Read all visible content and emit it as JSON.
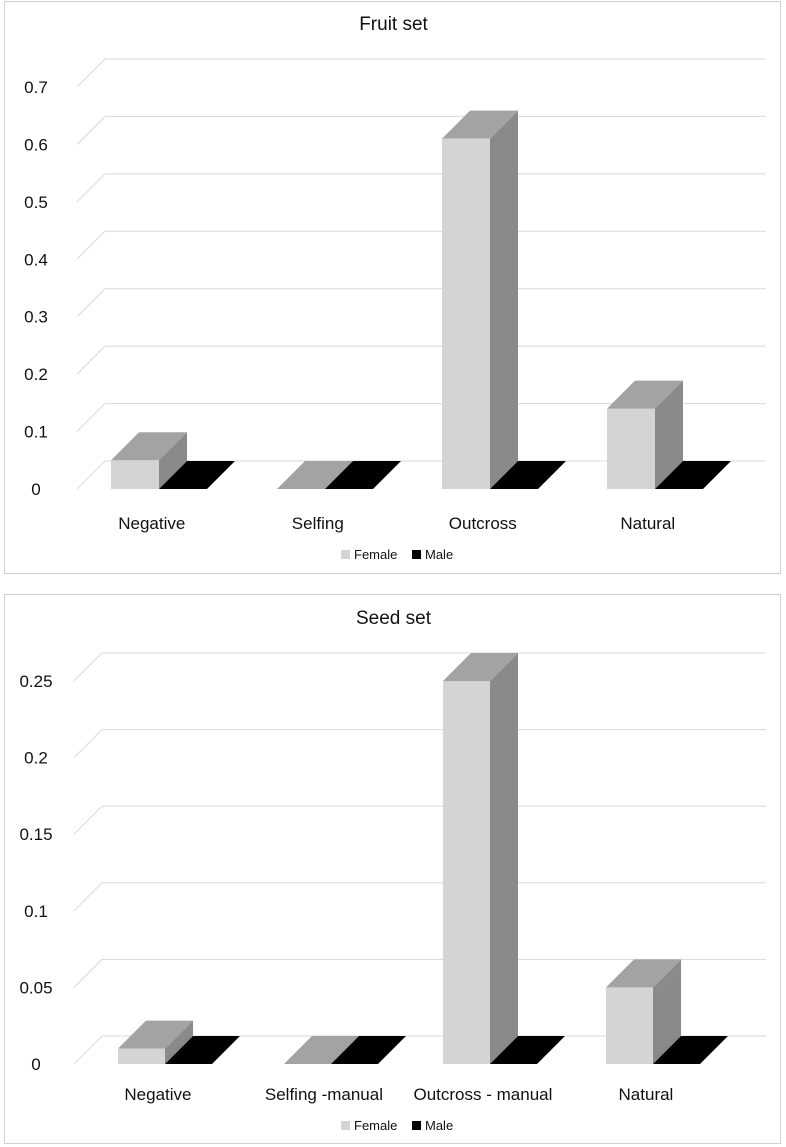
{
  "colors": {
    "female_front": "#d4d4d4",
    "female_side": "#8a8a8a",
    "female_top": "#a3a3a3",
    "male": "#000000",
    "grid": "#d9d9d9"
  },
  "chart_data": [
    {
      "type": "bar",
      "title": "Fruit set",
      "categories": [
        "Negative",
        "Selfing",
        "Outcross",
        "Natural"
      ],
      "series": [
        {
          "name": "Female",
          "values": [
            0.05,
            0.0,
            0.61,
            0.14
          ]
        },
        {
          "name": "Male",
          "values": [
            0.0,
            0.0,
            0.0,
            0.0
          ]
        }
      ],
      "yticks": [
        "0",
        "0.1",
        "0.2",
        "0.3",
        "0.4",
        "0.5",
        "0.6",
        "0.7"
      ],
      "ylim": [
        0,
        0.7
      ],
      "xlabel": "",
      "ylabel": "",
      "legend_position": "bottom",
      "grid": true
    },
    {
      "type": "bar",
      "title": "Seed set",
      "categories": [
        "Negative",
        "Selfing -manual",
        "Outcross - manual",
        "Natural"
      ],
      "series": [
        {
          "name": "Female",
          "values": [
            0.01,
            0.0,
            0.25,
            0.05
          ]
        },
        {
          "name": "Male",
          "values": [
            0.0,
            0.0,
            0.0,
            0.0
          ]
        }
      ],
      "yticks": [
        "0",
        "0.05",
        "0.1",
        "0.15",
        "0.2",
        "0.25"
      ],
      "ylim": [
        0,
        0.25
      ],
      "xlabel": "",
      "ylabel": "",
      "legend_position": "bottom",
      "grid": true
    }
  ]
}
